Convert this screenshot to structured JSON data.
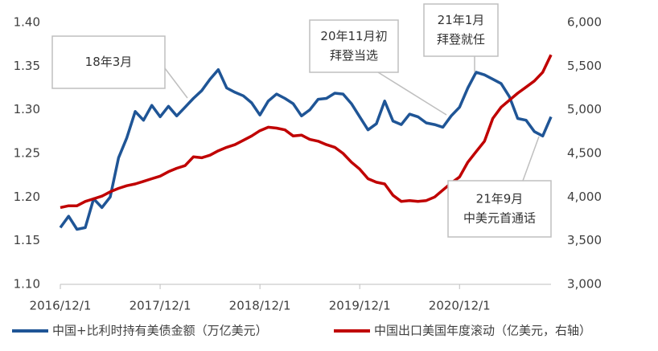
{
  "chart_data": {
    "type": "line",
    "categories": [
      "2016/12/1",
      null,
      null,
      null,
      null,
      null,
      null,
      null,
      null,
      null,
      null,
      null,
      "2017/12/1",
      null,
      null,
      null,
      null,
      null,
      null,
      null,
      null,
      null,
      null,
      null,
      "2018/12/1",
      null,
      null,
      null,
      null,
      null,
      null,
      null,
      null,
      null,
      null,
      null,
      "2019/12/1",
      null,
      null,
      null,
      null,
      null,
      null,
      null,
      null,
      null,
      null,
      null,
      "2020/12/1",
      null,
      null,
      null,
      null,
      null,
      null,
      null,
      null,
      null,
      null,
      null
    ],
    "series": [
      {
        "name": "中国+比利时持有美债金额（万亿美元）",
        "color": "#1f5596",
        "values": [
          1.165,
          1.178,
          1.163,
          1.165,
          1.198,
          1.188,
          1.2,
          1.245,
          1.268,
          1.298,
          1.288,
          1.305,
          1.292,
          1.304,
          1.293,
          1.303,
          1.313,
          1.322,
          1.335,
          1.346,
          1.325,
          1.32,
          1.316,
          1.308,
          1.294,
          1.31,
          1.318,
          1.313,
          1.307,
          1.293,
          1.3,
          1.312,
          1.313,
          1.319,
          1.318,
          1.307,
          1.292,
          1.277,
          1.284,
          1.31,
          1.287,
          1.283,
          1.295,
          1.292,
          1.285,
          1.283,
          1.28,
          1.293,
          1.303,
          1.325,
          1.343,
          1.34,
          1.335,
          1.33,
          1.315,
          1.29,
          1.288,
          1.275,
          1.27,
          1.292
        ]
      },
      {
        "name": "中国出口美国年度滚动（亿美元，右轴）",
        "color": "#c00000",
        "axis": "y2",
        "values": [
          3880,
          3900,
          3900,
          3950,
          3980,
          4010,
          4060,
          4100,
          4130,
          4150,
          4180,
          4210,
          4240,
          4290,
          4330,
          4360,
          4460,
          4450,
          4480,
          4530,
          4570,
          4600,
          4650,
          4700,
          4760,
          4800,
          4790,
          4770,
          4700,
          4710,
          4660,
          4640,
          4600,
          4570,
          4500,
          4400,
          4320,
          4210,
          4170,
          4150,
          4020,
          3950,
          3960,
          3950,
          3960,
          4000,
          4080,
          4160,
          4230,
          4400,
          4520,
          4640,
          4900,
          5030,
          5110,
          5190,
          5260,
          5330,
          5430,
          5630
        ]
      }
    ],
    "ylim": [
      1.1,
      1.4
    ],
    "yticks": [
      {
        "value": 1.1,
        "label": "1.10"
      },
      1.15,
      {
        "value": 1.2,
        "label": "1.20"
      },
      1.25,
      {
        "value": 1.3,
        "label": "1.30"
      },
      1.35,
      {
        "value": 1.4,
        "label": "1.40"
      }
    ],
    "y2lim": [
      3000,
      6000
    ],
    "y2ticks": [
      {
        "value": 3000,
        "label": "3,000"
      },
      {
        "value": 3500,
        "label": "3,500"
      },
      {
        "value": 4000,
        "label": "4,000"
      },
      {
        "value": 4500,
        "label": "4,500"
      },
      {
        "value": 5000,
        "label": "5,000"
      },
      {
        "value": 5500,
        "label": "5,500"
      },
      {
        "value": 6000,
        "label": "6,000"
      }
    ],
    "grid": false,
    "legend": "bottom",
    "annotations": [
      [
        "18年3月"
      ],
      [
        "20年11月初",
        "拜登当选"
      ],
      [
        "21年1月",
        "拜登就任"
      ],
      [
        "21年9月",
        "中美元首通话"
      ]
    ]
  }
}
